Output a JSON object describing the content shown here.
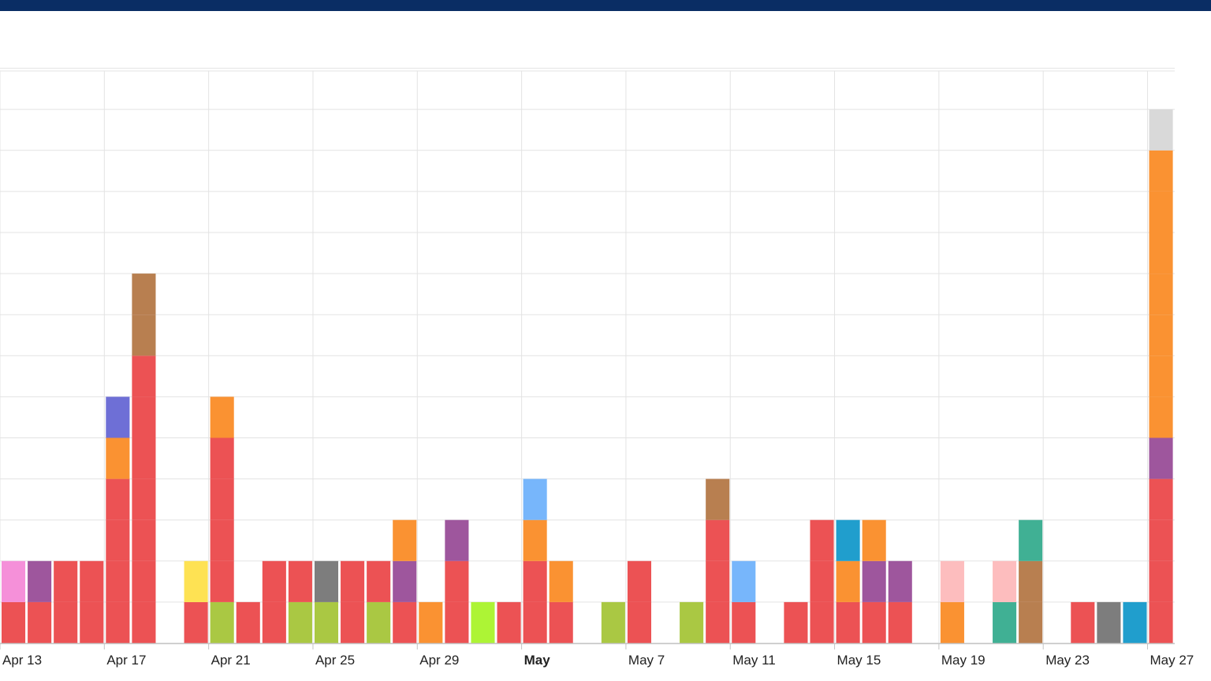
{
  "window": {
    "top_bar_color": "#0a2d64"
  },
  "chart_data": {
    "type": "bar",
    "stacked": true,
    "title": "",
    "xlabel": "",
    "ylabel": "",
    "ylim": [
      0,
      14
    ],
    "grid": true,
    "x_axis": {
      "start_date": "Apr 12",
      "ticks": [
        {
          "label": "Apr 13",
          "bold": false
        },
        {
          "label": "Apr 17",
          "bold": false
        },
        {
          "label": "Apr 21",
          "bold": false
        },
        {
          "label": "Apr 25",
          "bold": false
        },
        {
          "label": "Apr 29",
          "bold": false
        },
        {
          "label": "May",
          "bold": true
        },
        {
          "label": "May 7",
          "bold": false
        },
        {
          "label": "May 11",
          "bold": false
        },
        {
          "label": "May 15",
          "bold": false
        },
        {
          "label": "May 19",
          "bold": false
        },
        {
          "label": "May 23",
          "bold": false
        },
        {
          "label": "May 27",
          "bold": false
        }
      ]
    },
    "colors": {
      "red": "#ec5254",
      "pink": "#f590d9",
      "purple": "#9e569d",
      "blue_violet": "#6e6fd6",
      "orange": "#fa9232",
      "brown": "#b87f50",
      "yellow": "#fee253",
      "olive": "#aac843",
      "gray": "#7d7d7d",
      "lime": "#adf435",
      "light_blue": "#77b6fb",
      "teal_blue": "#209ecd",
      "light_pink": "#fdbdbe",
      "teal": "#40b094",
      "light_gray": "#d9d9d9"
    },
    "days": [
      {
        "date": "Apr 13",
        "stack": [
          "red",
          "pink"
        ]
      },
      {
        "date": "Apr 14",
        "stack": [
          "red",
          "purple"
        ]
      },
      {
        "date": "Apr 15",
        "stack": [
          "red",
          "red"
        ]
      },
      {
        "date": "Apr 16",
        "stack": [
          "red",
          "red"
        ]
      },
      {
        "date": "Apr 17",
        "stack": [
          "red",
          "red",
          "red",
          "red",
          "orange",
          "blue_violet"
        ]
      },
      {
        "date": "Apr 18",
        "stack": [
          "red",
          "red",
          "red",
          "red",
          "red",
          "red",
          "red",
          "brown",
          "brown"
        ]
      },
      {
        "date": "Apr 19",
        "stack": []
      },
      {
        "date": "Apr 20",
        "stack": [
          "red",
          "yellow"
        ]
      },
      {
        "date": "Apr 21",
        "stack": [
          "olive",
          "red",
          "red",
          "red",
          "red",
          "orange"
        ]
      },
      {
        "date": "Apr 22",
        "stack": [
          "red"
        ]
      },
      {
        "date": "Apr 23",
        "stack": [
          "red",
          "red"
        ]
      },
      {
        "date": "Apr 24",
        "stack": [
          "olive",
          "red"
        ]
      },
      {
        "date": "Apr 25",
        "stack": [
          "olive",
          "gray"
        ]
      },
      {
        "date": "Apr 26",
        "stack": [
          "red",
          "red"
        ]
      },
      {
        "date": "Apr 27",
        "stack": [
          "olive",
          "red"
        ]
      },
      {
        "date": "Apr 28",
        "stack": [
          "red",
          "purple",
          "orange"
        ]
      },
      {
        "date": "Apr 29",
        "stack": [
          "orange"
        ]
      },
      {
        "date": "Apr 30",
        "stack": [
          "red",
          "red",
          "purple"
        ]
      },
      {
        "date": "May 1",
        "stack": [
          "lime"
        ]
      },
      {
        "date": "May 2",
        "stack": [
          "red"
        ]
      },
      {
        "date": "May 3",
        "stack": [
          "red",
          "red",
          "orange",
          "light_blue"
        ]
      },
      {
        "date": "May 4",
        "stack": [
          "red",
          "orange"
        ]
      },
      {
        "date": "May 5",
        "stack": []
      },
      {
        "date": "May 6",
        "stack": [
          "olive"
        ]
      },
      {
        "date": "May 7",
        "stack": [
          "red",
          "red"
        ]
      },
      {
        "date": "May 8",
        "stack": []
      },
      {
        "date": "May 9",
        "stack": [
          "olive"
        ]
      },
      {
        "date": "May 10",
        "stack": [
          "red",
          "red",
          "red",
          "brown"
        ]
      },
      {
        "date": "May 11",
        "stack": [
          "red",
          "light_blue"
        ]
      },
      {
        "date": "May 12",
        "stack": []
      },
      {
        "date": "May 13",
        "stack": [
          "red"
        ]
      },
      {
        "date": "May 14",
        "stack": [
          "red",
          "red",
          "red"
        ]
      },
      {
        "date": "May 15",
        "stack": [
          "red",
          "orange",
          "teal_blue"
        ]
      },
      {
        "date": "May 16",
        "stack": [
          "red",
          "purple",
          "orange"
        ]
      },
      {
        "date": "May 17",
        "stack": [
          "red",
          "purple"
        ]
      },
      {
        "date": "May 18",
        "stack": []
      },
      {
        "date": "May 19",
        "stack": [
          "orange",
          "light_pink"
        ]
      },
      {
        "date": "May 20",
        "stack": []
      },
      {
        "date": "May 21",
        "stack": [
          "teal",
          "light_pink"
        ]
      },
      {
        "date": "May 22",
        "stack": [
          "brown",
          "brown",
          "teal"
        ]
      },
      {
        "date": "May 23",
        "stack": []
      },
      {
        "date": "May 24",
        "stack": [
          "red"
        ]
      },
      {
        "date": "May 25",
        "stack": [
          "gray"
        ]
      },
      {
        "date": "May 26",
        "stack": [
          "teal_blue"
        ]
      },
      {
        "date": "May 27",
        "stack": [
          "red",
          "red",
          "red",
          "red",
          "purple",
          "orange",
          "orange",
          "orange",
          "orange",
          "orange",
          "orange",
          "orange",
          "light_gray"
        ]
      }
    ]
  }
}
